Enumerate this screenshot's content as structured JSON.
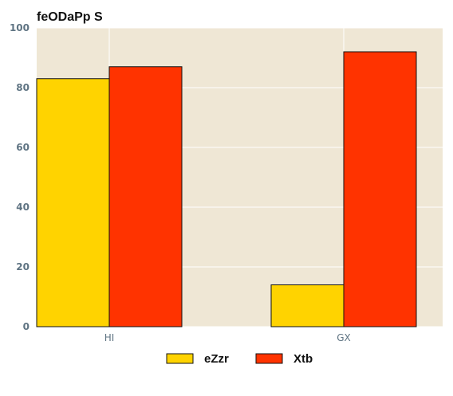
{
  "chart_data": {
    "type": "bar",
    "title": "feODaPp S",
    "xlabel": "",
    "ylabel": "",
    "categories": [
      "HI",
      "GX"
    ],
    "series": [
      {
        "name": "eZzr",
        "values": [
          83,
          14
        ],
        "color": "#FFD300"
      },
      {
        "name": "Xtb",
        "values": [
          87,
          92
        ],
        "color": "#FF3300"
      }
    ],
    "ylim": [
      0,
      100
    ],
    "yticks": [
      0,
      20,
      40,
      60,
      80,
      100
    ],
    "grid": true,
    "plot_background": "#EFE7D5",
    "legend_position": "bottom-center"
  }
}
